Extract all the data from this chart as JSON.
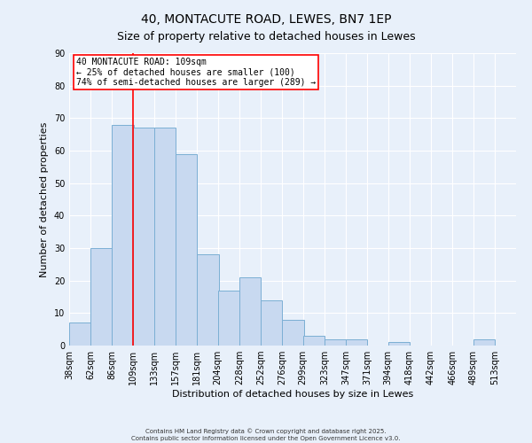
{
  "title": "40, MONTACUTE ROAD, LEWES, BN7 1EP",
  "subtitle": "Size of property relative to detached houses in Lewes",
  "xlabel": "Distribution of detached houses by size in Lewes",
  "ylabel": "Number of detached properties",
  "bin_labels": [
    "38sqm",
    "62sqm",
    "86sqm",
    "109sqm",
    "133sqm",
    "157sqm",
    "181sqm",
    "204sqm",
    "228sqm",
    "252sqm",
    "276sqm",
    "299sqm",
    "323sqm",
    "347sqm",
    "371sqm",
    "394sqm",
    "418sqm",
    "442sqm",
    "466sqm",
    "489sqm",
    "513sqm"
  ],
  "bin_edges": [
    38,
    62,
    86,
    109,
    133,
    157,
    181,
    204,
    228,
    252,
    276,
    299,
    323,
    347,
    371,
    394,
    418,
    442,
    466,
    489,
    513
  ],
  "bin_width": 24,
  "bar_heights": [
    7,
    30,
    68,
    67,
    67,
    59,
    28,
    17,
    21,
    14,
    8,
    3,
    2,
    2,
    0,
    1,
    0,
    0,
    0,
    2,
    0
  ],
  "bar_color": "#c8d9f0",
  "bar_edge_color": "#7bafd4",
  "vline_x": 109,
  "vline_color": "red",
  "annotation_line1": "40 MONTACUTE ROAD: 109sqm",
  "annotation_line2": "← 25% of detached houses are smaller (100)",
  "annotation_line3": "74% of semi-detached houses are larger (289) →",
  "annotation_box_facecolor": "white",
  "annotation_box_edgecolor": "red",
  "ylim": [
    0,
    90
  ],
  "yticks": [
    0,
    10,
    20,
    30,
    40,
    50,
    60,
    70,
    80,
    90
  ],
  "bg_color": "#e8f0fa",
  "grid_color": "white",
  "footer_line1": "Contains HM Land Registry data © Crown copyright and database right 2025.",
  "footer_line2": "Contains public sector information licensed under the Open Government Licence v3.0.",
  "title_fontsize": 10,
  "subtitle_fontsize": 9,
  "xlabel_fontsize": 8,
  "ylabel_fontsize": 8,
  "tick_fontsize": 7,
  "annot_fontsize": 7,
  "footer_fontsize": 5
}
